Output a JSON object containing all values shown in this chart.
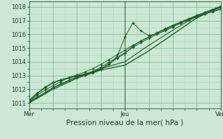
{
  "background_color": "#cce8d4",
  "grid_color_major": "#88bb99",
  "grid_color_minor": "#aad4b8",
  "line_color": "#1a5c28",
  "xlabel": "Pression niveau de la mer( hPa )",
  "xlabel_fontsize": 7.5,
  "tick_fontsize": 6.0,
  "ylabel_ticks": [
    1011,
    1012,
    1013,
    1014,
    1015,
    1016,
    1017,
    1018
  ],
  "xlim": [
    0,
    96
  ],
  "ylim": [
    1010.6,
    1018.4
  ],
  "xtick_positions": [
    0,
    48,
    96
  ],
  "xtick_labels": [
    "Mer",
    "Jeu",
    "Ven"
  ],
  "vline_positions": [
    48,
    96
  ],
  "line1_x": [
    0,
    4,
    8,
    12,
    16,
    20,
    24,
    28,
    32,
    36,
    40,
    44,
    48,
    52,
    56,
    60,
    64,
    68,
    72,
    76,
    80,
    84,
    88,
    92,
    96
  ],
  "line1_y": [
    1011.1,
    1011.55,
    1011.95,
    1012.25,
    1012.55,
    1012.85,
    1013.05,
    1013.25,
    1013.5,
    1013.8,
    1014.15,
    1014.5,
    1014.85,
    1015.2,
    1015.5,
    1015.8,
    1016.1,
    1016.4,
    1016.65,
    1016.9,
    1017.1,
    1017.3,
    1017.5,
    1017.7,
    1017.85
  ],
  "line2_x": [
    0,
    4,
    8,
    12,
    16,
    20,
    24,
    28,
    32,
    36,
    40,
    44,
    48,
    52,
    56,
    60,
    64,
    68,
    72,
    76,
    80,
    84,
    88,
    92,
    96
  ],
  "line2_y": [
    1011.05,
    1011.4,
    1011.75,
    1012.1,
    1012.4,
    1012.65,
    1012.85,
    1013.05,
    1013.3,
    1013.6,
    1013.95,
    1014.3,
    1014.65,
    1015.05,
    1015.4,
    1015.7,
    1016.0,
    1016.3,
    1016.58,
    1016.82,
    1017.05,
    1017.25,
    1017.48,
    1017.65,
    1017.82
  ],
  "line3_x": [
    0,
    4,
    8,
    12,
    16,
    20,
    24,
    28,
    32,
    36,
    40,
    44,
    48,
    52,
    56,
    60,
    64,
    68,
    72,
    76,
    80,
    84,
    88,
    92,
    96
  ],
  "line3_y": [
    1011.2,
    1011.7,
    1012.15,
    1012.5,
    1012.7,
    1012.85,
    1013.0,
    1013.1,
    1013.25,
    1013.5,
    1013.85,
    1014.35,
    1015.8,
    1016.85,
    1016.25,
    1015.9,
    1016.05,
    1016.25,
    1016.55,
    1016.82,
    1017.1,
    1017.35,
    1017.58,
    1017.78,
    1017.95
  ],
  "line4_x": [
    0,
    4,
    8,
    12,
    16,
    20,
    24,
    28,
    32,
    36,
    40,
    44,
    48,
    52,
    56,
    60,
    64,
    68,
    72,
    76,
    80,
    84,
    88,
    92,
    96
  ],
  "line4_y": [
    1011.15,
    1011.65,
    1012.1,
    1012.45,
    1012.65,
    1012.82,
    1012.95,
    1013.05,
    1013.2,
    1013.45,
    1013.8,
    1014.25,
    1014.6,
    1015.15,
    1015.52,
    1015.8,
    1016.1,
    1016.38,
    1016.65,
    1016.9,
    1017.15,
    1017.38,
    1017.6,
    1017.8,
    1017.98
  ],
  "line5_x": [
    0,
    12,
    24,
    36,
    48,
    60,
    72,
    84,
    96
  ],
  "line5_y": [
    1011.0,
    1012.0,
    1012.8,
    1013.4,
    1013.75,
    1014.8,
    1016.0,
    1017.2,
    1018.0
  ],
  "line6_x": [
    0,
    12,
    24,
    36,
    48,
    60,
    72,
    84,
    96
  ],
  "line6_y": [
    1011.05,
    1012.1,
    1012.9,
    1013.5,
    1014.0,
    1015.2,
    1016.3,
    1017.35,
    1018.05
  ]
}
